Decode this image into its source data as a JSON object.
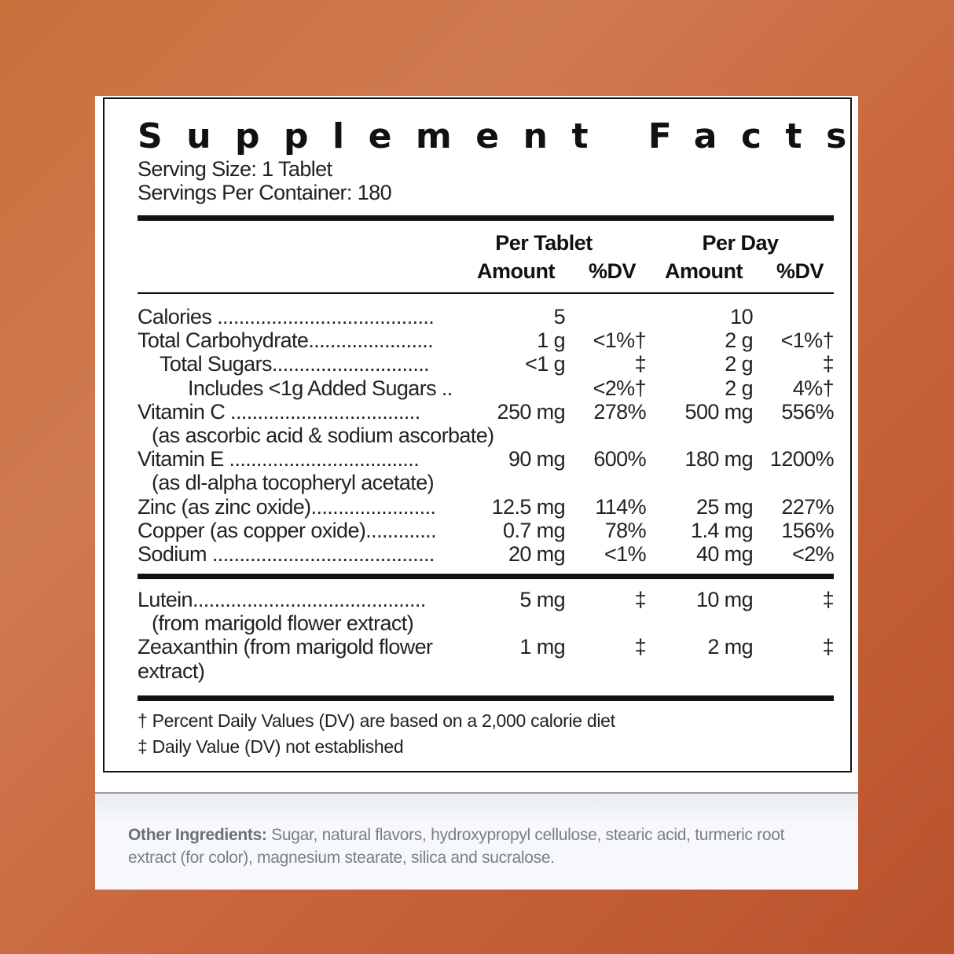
{
  "title": "Supplement Facts",
  "serving_size": "Serving Size: 1 Tablet",
  "servings_per_container": "Servings Per Container: 180",
  "headers": {
    "per_tablet": "Per Tablet",
    "per_day": "Per Day",
    "amount": "Amount",
    "dv": "%DV"
  },
  "rows": [
    {
      "label": "Calories ........................................",
      "t_amt": "5",
      "t_dv": "",
      "d_amt": "10",
      "d_dv": ""
    },
    {
      "label": "Total Carbohydrate.......................",
      "t_amt": "1 g",
      "t_dv": "<1%†",
      "d_amt": "2 g",
      "d_dv": "<1%†"
    },
    {
      "label": "Total Sugars.............................",
      "indent": 1,
      "t_amt": "<1 g",
      "t_dv": "‡",
      "d_amt": "2 g",
      "d_dv": "‡"
    },
    {
      "label": "Includes <1g Added Sugars ..",
      "indent": 2,
      "t_amt": "",
      "t_dv": "<2%†",
      "d_amt": "2 g",
      "d_dv": "4%†"
    },
    {
      "label": "Vitamin C ...................................",
      "t_amt": "250 mg",
      "t_dv": "278%",
      "d_amt": "500 mg",
      "d_dv": "556%"
    },
    {
      "label": "(as ascorbic acid & sodium ascorbate)",
      "sub": 1
    },
    {
      "label": "Vitamin E ...................................",
      "t_amt": "90 mg",
      "t_dv": "600%",
      "d_amt": "180 mg",
      "d_dv": "1200%"
    },
    {
      "label": "(as dl-alpha tocopheryl acetate)",
      "sub": 1
    },
    {
      "label": "Zinc (as zinc oxide).......................",
      "t_amt": "12.5 mg",
      "t_dv": "114%",
      "d_amt": "25 mg",
      "d_dv": "227%"
    },
    {
      "label": "Copper (as copper oxide).............",
      "t_amt": "0.7 mg",
      "t_dv": "78%",
      "d_amt": "1.4 mg",
      "d_dv": "156%"
    },
    {
      "label": "Sodium .........................................",
      "t_amt": "20 mg",
      "t_dv": "<1%",
      "d_amt": "40 mg",
      "d_dv": "<2%"
    }
  ],
  "rows2": [
    {
      "label": "Lutein...........................................",
      "t_amt": "5 mg",
      "t_dv": "‡",
      "d_amt": "10 mg",
      "d_dv": "‡"
    },
    {
      "label": "(from marigold flower extract)",
      "sub": 1
    },
    {
      "label": "Zeaxanthin   (from marigold flower",
      "t_amt": "1 mg",
      "t_dv": "‡",
      "d_amt": "2 mg",
      "d_dv": "‡"
    },
    {
      "label": "extract)"
    }
  ],
  "footnotes": [
    "† Percent Daily Values (DV) are based on a 2,000 calorie diet",
    "‡ Daily Value (DV) not established"
  ],
  "other_ingredients": {
    "label": "Other Ingredients:",
    "text": " Sugar, natural flavors, hydroxypropyl cellulose, stearic acid, turmeric root extract (for color), magnesium stearate, silica and sucralose."
  }
}
